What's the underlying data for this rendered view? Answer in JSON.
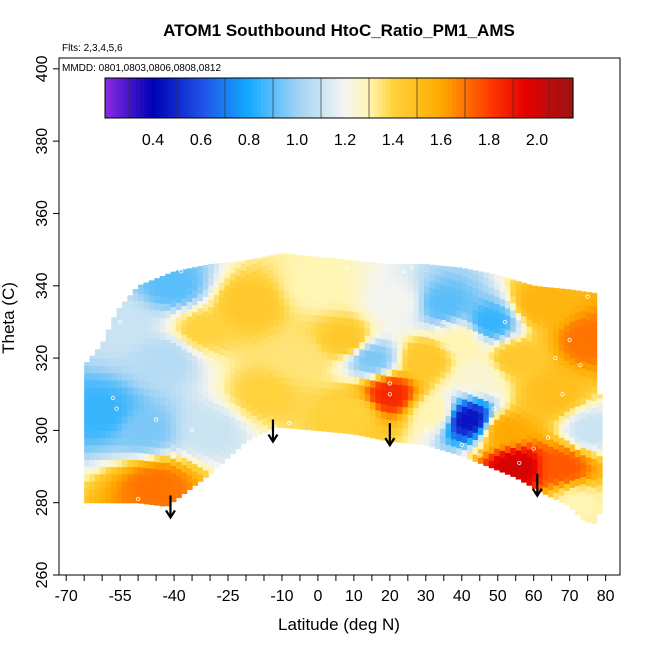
{
  "chart_data": {
    "type": "heatmap",
    "title": "ATOM1 Southbound HtoC_Ratio_PM1_AMS",
    "flights_note": "Flts: 2,3,4,5,6",
    "dates_note": "MMDD: 0801,0803,0806,0808,0812",
    "xlabel": "Latitude (deg N)",
    "ylabel": "Theta (C)",
    "xlim": [
      -72,
      84
    ],
    "ylim": [
      260,
      403
    ],
    "x_ticks": [
      -70,
      -55,
      -40,
      -25,
      -10,
      0,
      10,
      20,
      30,
      40,
      50,
      60,
      70,
      80
    ],
    "x_tick_labels": [
      "-70",
      "-55",
      "-40",
      "-25",
      "-10",
      "0",
      "10",
      "20",
      "30",
      "40",
      "50",
      "60",
      "70",
      "80"
    ],
    "x_minor_ticks": [
      -65,
      -60,
      -50,
      -45,
      -35,
      -30,
      -20,
      -15,
      -5,
      5,
      15,
      25,
      35,
      45,
      55,
      65,
      75
    ],
    "y_ticks": [
      260,
      280,
      300,
      320,
      340,
      360,
      380,
      400
    ],
    "y_tick_labels": [
      "260",
      "280",
      "300",
      "320",
      "340",
      "360",
      "380",
      "400"
    ],
    "colorbar": {
      "range": [
        0.2,
        2.15
      ],
      "tick_values": [
        0.4,
        0.6,
        0.8,
        1.0,
        1.2,
        1.4,
        1.6,
        1.8,
        2.0
      ],
      "tick_labels": [
        "0.4",
        "0.6",
        "0.8",
        "1.0",
        "1.2",
        "1.4",
        "1.6",
        "1.8",
        "2.0"
      ],
      "stops": [
        {
          "value": 0.2,
          "color": "#8a2be2"
        },
        {
          "value": 0.4,
          "color": "#0000b4"
        },
        {
          "value": 0.6,
          "color": "#1f50e6"
        },
        {
          "value": 0.8,
          "color": "#14aaff"
        },
        {
          "value": 1.0,
          "color": "#a0d2f5"
        },
        {
          "value": 1.2,
          "color": "#f5f5f0"
        },
        {
          "value": 1.3,
          "color": "#fff5b4"
        },
        {
          "value": 1.4,
          "color": "#ffd23c"
        },
        {
          "value": 1.6,
          "color": "#ffaa00"
        },
        {
          "value": 1.8,
          "color": "#ff3c00"
        },
        {
          "value": 1.95,
          "color": "#e60000"
        },
        {
          "value": 2.15,
          "color": "#9b1414"
        }
      ]
    },
    "domain": {
      "upper": [
        [
          -65,
          318
        ],
        [
          -60,
          324
        ],
        [
          -56,
          333
        ],
        [
          -50,
          340
        ],
        [
          -40,
          344
        ],
        [
          -30,
          346
        ],
        [
          -20,
          347
        ],
        [
          -10,
          349
        ],
        [
          0,
          348
        ],
        [
          10,
          347
        ],
        [
          20,
          346
        ],
        [
          30,
          346
        ],
        [
          40,
          345
        ],
        [
          50,
          343
        ],
        [
          60,
          340
        ],
        [
          70,
          339
        ],
        [
          77,
          338
        ],
        [
          78,
          330
        ],
        [
          78,
          310
        ]
      ],
      "lower": [
        [
          -58,
          280
        ],
        [
          -50,
          280
        ],
        [
          -42,
          279
        ],
        [
          -30,
          288
        ],
        [
          -20,
          297
        ],
        [
          -12,
          301
        ],
        [
          0,
          300
        ],
        [
          10,
          299
        ],
        [
          20,
          297
        ],
        [
          30,
          296
        ],
        [
          40,
          293
        ],
        [
          50,
          289
        ],
        [
          55,
          287
        ],
        [
          62,
          283
        ],
        [
          70,
          279
        ],
        [
          74,
          275
        ],
        [
          78,
          274
        ],
        [
          79,
          286
        ],
        [
          79,
          300
        ]
      ]
    },
    "control_points": [
      {
        "lat": -60,
        "theta": 305,
        "value": 0.85
      },
      {
        "lat": -55,
        "theta": 330,
        "value": 1.1
      },
      {
        "lat": -48,
        "theta": 300,
        "value": 0.95
      },
      {
        "lat": -45,
        "theta": 285,
        "value": 1.7
      },
      {
        "lat": -42,
        "theta": 320,
        "value": 1.05
      },
      {
        "lat": -40,
        "theta": 340,
        "value": 0.9
      },
      {
        "lat": -32,
        "theta": 328,
        "value": 1.4
      },
      {
        "lat": -30,
        "theta": 300,
        "value": 1.1
      },
      {
        "lat": -20,
        "theta": 335,
        "value": 1.45
      },
      {
        "lat": -15,
        "theta": 310,
        "value": 1.4
      },
      {
        "lat": -5,
        "theta": 320,
        "value": 1.35
      },
      {
        "lat": 0,
        "theta": 340,
        "value": 1.3
      },
      {
        "lat": 8,
        "theta": 325,
        "value": 1.45
      },
      {
        "lat": 10,
        "theta": 305,
        "value": 1.4
      },
      {
        "lat": 15,
        "theta": 320,
        "value": 0.95
      },
      {
        "lat": 20,
        "theta": 310,
        "value": 1.85
      },
      {
        "lat": 22,
        "theta": 335,
        "value": 1.2
      },
      {
        "lat": 30,
        "theta": 320,
        "value": 1.45
      },
      {
        "lat": 32,
        "theta": 305,
        "value": 1.3
      },
      {
        "lat": 35,
        "theta": 335,
        "value": 0.9
      },
      {
        "lat": 40,
        "theta": 325,
        "value": 1.3
      },
      {
        "lat": 42,
        "theta": 303,
        "value": 0.45
      },
      {
        "lat": 45,
        "theta": 315,
        "value": 1.25
      },
      {
        "lat": 48,
        "theta": 330,
        "value": 0.85
      },
      {
        "lat": 52,
        "theta": 300,
        "value": 1.6
      },
      {
        "lat": 55,
        "theta": 290,
        "value": 2.0
      },
      {
        "lat": 55,
        "theta": 320,
        "value": 1.45
      },
      {
        "lat": 62,
        "theta": 335,
        "value": 1.55
      },
      {
        "lat": 65,
        "theta": 310,
        "value": 1.5
      },
      {
        "lat": 68,
        "theta": 290,
        "value": 1.75
      },
      {
        "lat": 72,
        "theta": 280,
        "value": 1.3
      },
      {
        "lat": 75,
        "theta": 325,
        "value": 1.7
      },
      {
        "lat": 76,
        "theta": 300,
        "value": 1.1
      }
    ],
    "markers": [
      {
        "lat": -41,
        "theta": 282,
        "direction": "down"
      },
      {
        "lat": -12.5,
        "theta": 303,
        "direction": "down"
      },
      {
        "lat": 20,
        "theta": 302,
        "direction": "down"
      },
      {
        "lat": 61,
        "theta": 288,
        "direction": "down"
      }
    ],
    "observations": [
      {
        "lat": -57,
        "theta": 309
      },
      {
        "lat": -56,
        "theta": 306
      },
      {
        "lat": -55,
        "theta": 330
      },
      {
        "lat": -50,
        "theta": 281
      },
      {
        "lat": -45,
        "theta": 303
      },
      {
        "lat": -38,
        "theta": 344
      },
      {
        "lat": -35,
        "theta": 300
      },
      {
        "lat": -12,
        "theta": 301
      },
      {
        "lat": -8,
        "theta": 302
      },
      {
        "lat": 8,
        "theta": 345
      },
      {
        "lat": 20,
        "theta": 313
      },
      {
        "lat": 20,
        "theta": 310
      },
      {
        "lat": 24,
        "theta": 344
      },
      {
        "lat": 26,
        "theta": 345
      },
      {
        "lat": 30,
        "theta": 300
      },
      {
        "lat": 35,
        "theta": 330
      },
      {
        "lat": 40,
        "theta": 296
      },
      {
        "lat": 45,
        "theta": 293
      },
      {
        "lat": 49,
        "theta": 306
      },
      {
        "lat": 52,
        "theta": 330
      },
      {
        "lat": 56,
        "theta": 291
      },
      {
        "lat": 60,
        "theta": 295
      },
      {
        "lat": 64,
        "theta": 298
      },
      {
        "lat": 66,
        "theta": 320
      },
      {
        "lat": 68,
        "theta": 310
      },
      {
        "lat": 70,
        "theta": 325
      },
      {
        "lat": 73,
        "theta": 318
      },
      {
        "lat": 75,
        "theta": 337
      },
      {
        "lat": 77,
        "theta": 295
      }
    ]
  }
}
